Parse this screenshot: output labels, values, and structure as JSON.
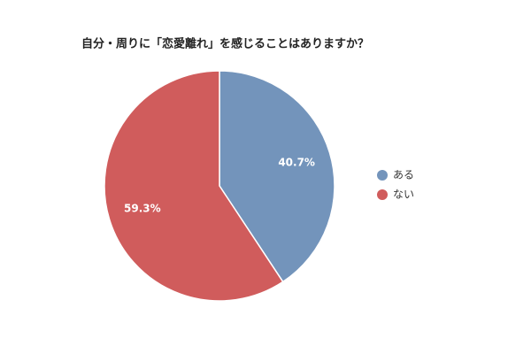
{
  "chart_data": {
    "type": "pie",
    "title": "自分・周りに「恋愛離れ」を感じることはありますか？",
    "categories": [
      "ある",
      "ない"
    ],
    "values": [
      40.7,
      59.3
    ],
    "value_labels": [
      "40.7%",
      "59.3%"
    ],
    "colors": [
      "#7394bb",
      "#d05c5c"
    ],
    "legend": "right"
  }
}
